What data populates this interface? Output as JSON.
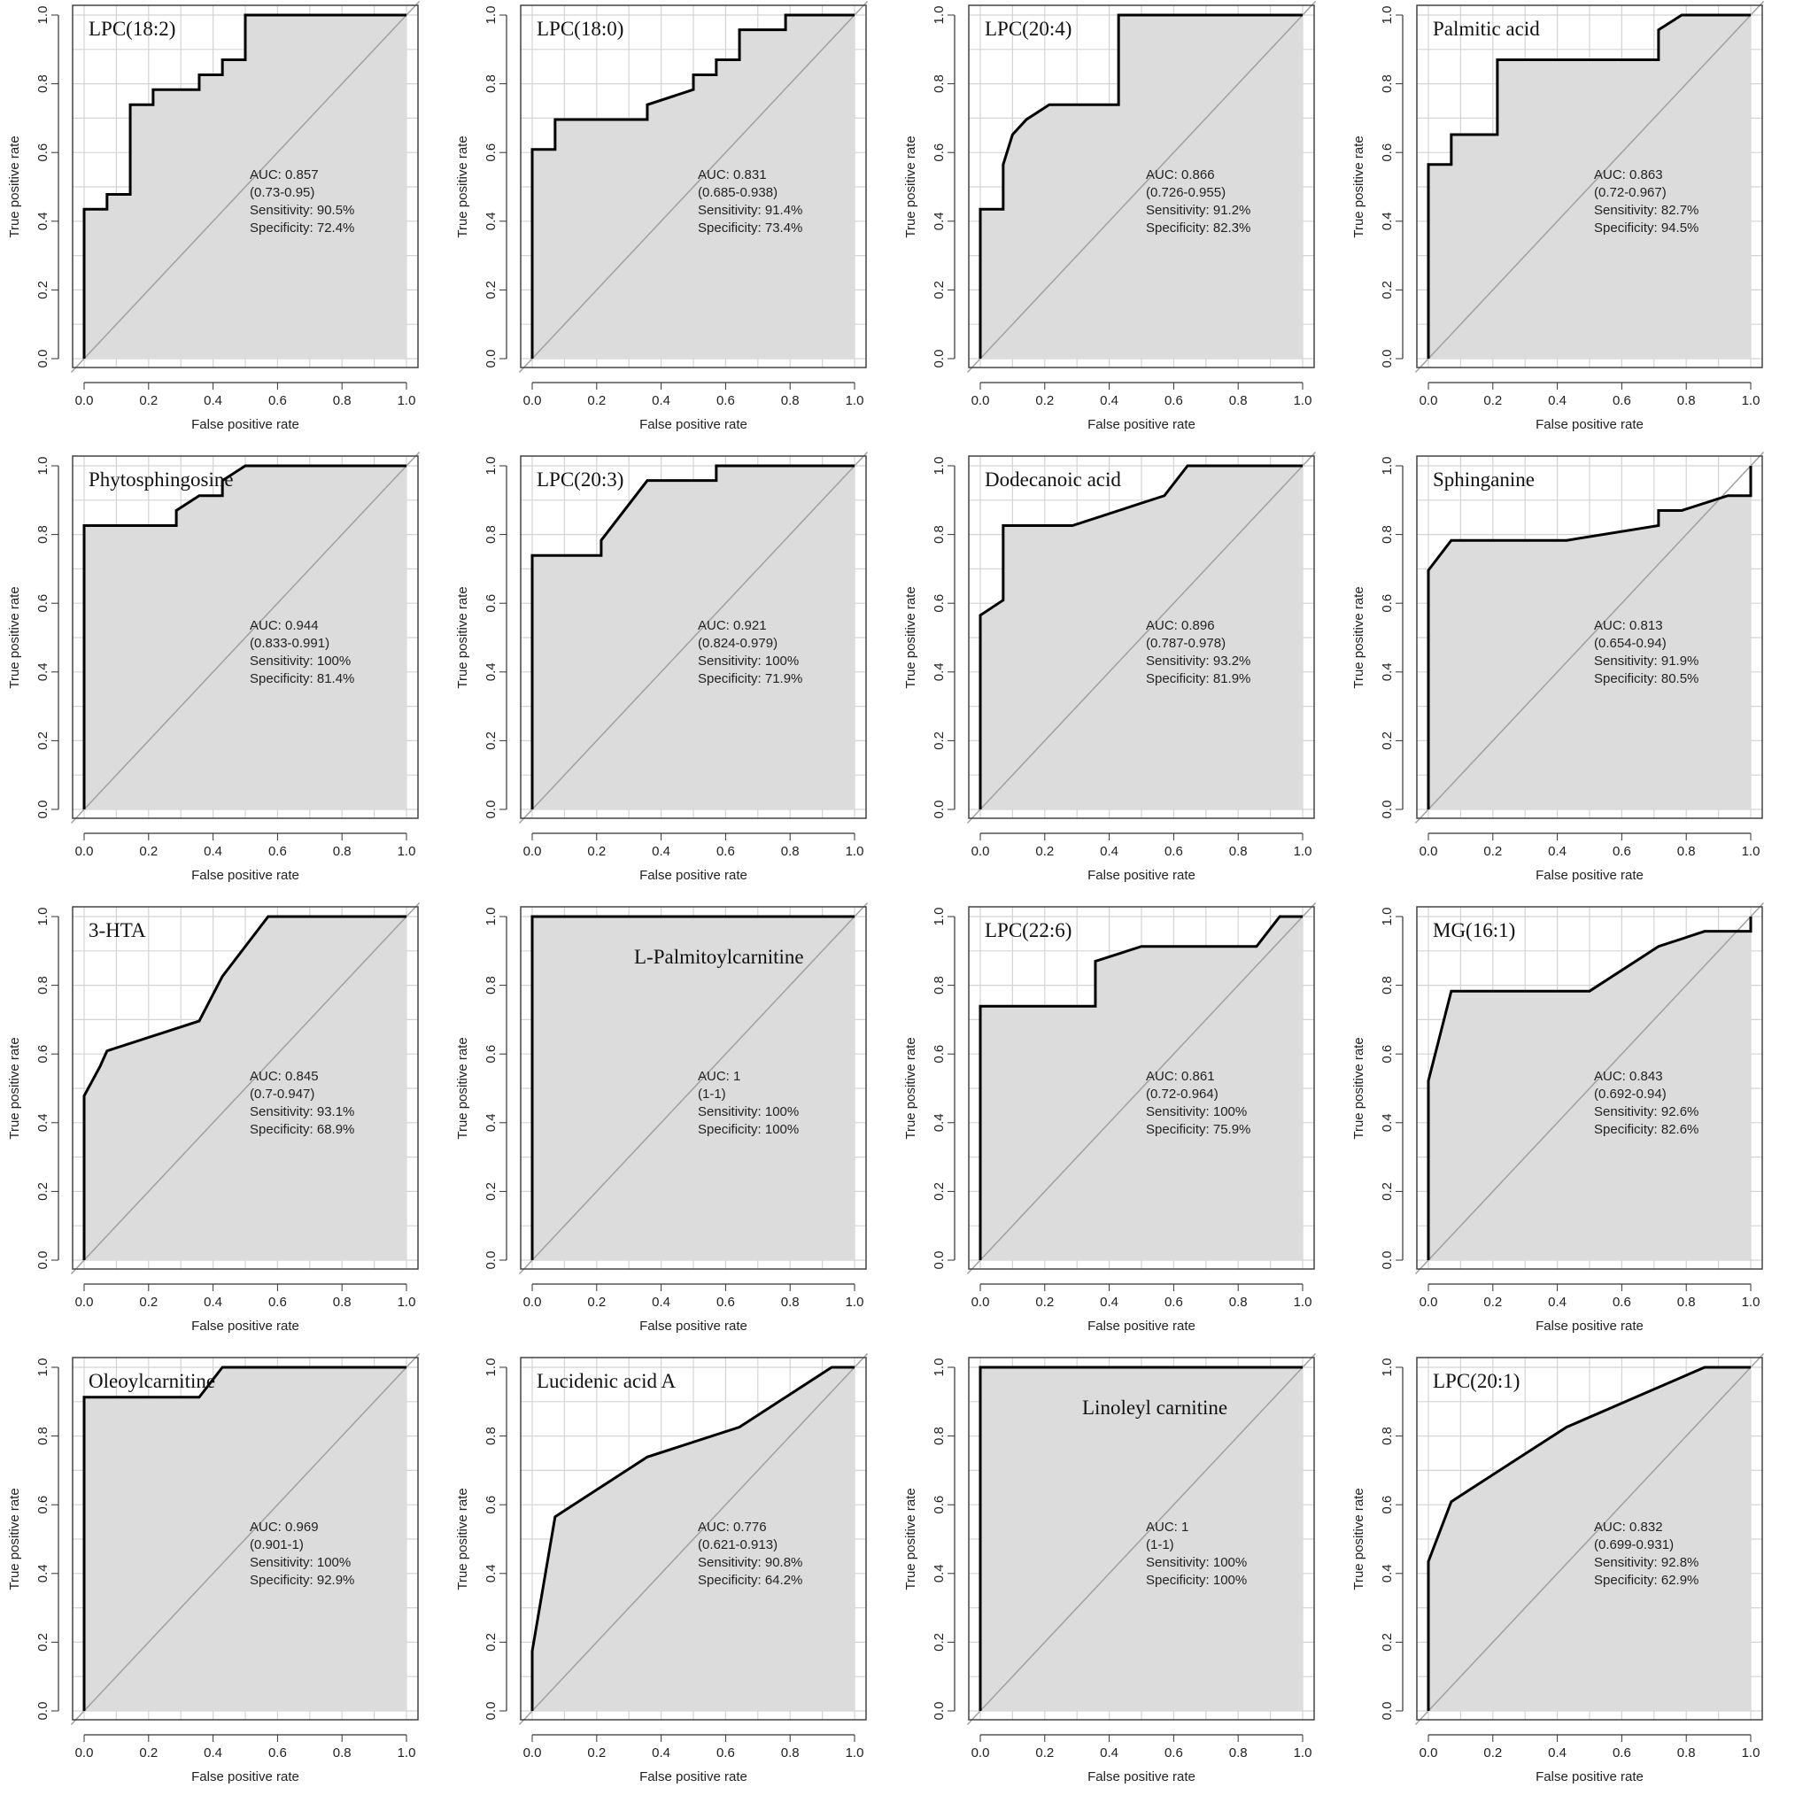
{
  "common": {
    "xlabel": "False positive rate",
    "ylabel": "True positive rate",
    "xticks": [
      "0.0",
      "0.2",
      "0.4",
      "0.6",
      "0.8",
      "1.0"
    ],
    "yticks": [
      "0.0",
      "0.2",
      "0.4",
      "0.6",
      "0.8",
      "1.0"
    ],
    "xlim": [
      0,
      1
    ],
    "ylim": [
      0,
      1
    ],
    "grid": true,
    "fill_color": "#dcdcdc",
    "curve_color": "#000000",
    "diagonal_color": "#a0a0a0",
    "grid_color": "#d4d4d4"
  },
  "chart_data": [
    {
      "type": "line",
      "title": "LPC(18:2)",
      "auc": "AUC: 0.857",
      "ci": "(0.73-0.95)",
      "sensitivity": "Sensitivity: 90.5%",
      "specificity": "Specificity: 72.4%",
      "x": [
        0,
        0,
        0.071,
        0.071,
        0.143,
        0.143,
        0.214,
        0.214,
        0.357,
        0.357,
        0.429,
        0.429,
        0.5,
        0.5,
        1
      ],
      "y": [
        0,
        0.435,
        0.435,
        0.478,
        0.478,
        0.739,
        0.739,
        0.783,
        0.783,
        0.826,
        0.826,
        0.87,
        0.87,
        1,
        1
      ]
    },
    {
      "type": "line",
      "title": "LPC(18:0)",
      "auc": "AUC: 0.831",
      "ci": "(0.685-0.938)",
      "sensitivity": "Sensitivity: 91.4%",
      "specificity": "Specificity: 73.4%",
      "x": [
        0,
        0,
        0.071,
        0.071,
        0.357,
        0.357,
        0.5,
        0.5,
        0.571,
        0.571,
        0.643,
        0.643,
        0.786,
        0.786,
        1
      ],
      "y": [
        0,
        0.609,
        0.609,
        0.696,
        0.696,
        0.739,
        0.783,
        0.826,
        0.826,
        0.87,
        0.87,
        0.957,
        0.957,
        1,
        1
      ]
    },
    {
      "type": "line",
      "title": "LPC(20:4)",
      "auc": "AUC: 0.866",
      "ci": "(0.726-0.955)",
      "sensitivity": "Sensitivity: 91.2%",
      "specificity": "Specificity: 82.3%",
      "x": [
        0,
        0,
        0.071,
        0.071,
        0.1,
        0.143,
        0.214,
        0.429,
        0.429,
        1
      ],
      "y": [
        0,
        0.435,
        0.435,
        0.565,
        0.652,
        0.696,
        0.739,
        0.739,
        1,
        1
      ]
    },
    {
      "type": "line",
      "title": "Palmitic acid",
      "auc": "AUC: 0.863",
      "ci": "(0.72-0.967)",
      "sensitivity": "Sensitivity: 82.7%",
      "specificity": "Specificity: 94.5%",
      "x": [
        0,
        0,
        0.071,
        0.071,
        0.214,
        0.214,
        0.714,
        0.714,
        0.786,
        0.786,
        1
      ],
      "y": [
        0,
        0.565,
        0.565,
        0.652,
        0.652,
        0.87,
        0.87,
        0.957,
        1,
        1,
        1
      ]
    },
    {
      "type": "line",
      "title": "Phytosphingosine",
      "auc": "AUC: 0.944",
      "ci": "(0.833-0.991)",
      "sensitivity": "Sensitivity: 100%",
      "specificity": "Specificity: 81.4%",
      "x": [
        0,
        0,
        0.286,
        0.286,
        0.357,
        0.429,
        0.429,
        0.5,
        1
      ],
      "y": [
        0,
        0.826,
        0.826,
        0.87,
        0.913,
        0.913,
        0.957,
        1,
        1
      ]
    },
    {
      "type": "line",
      "title": "LPC(20:3)",
      "auc": "AUC: 0.921",
      "ci": "(0.824-0.979)",
      "sensitivity": "Sensitivity: 100%",
      "specificity": "Specificity: 71.9%",
      "x": [
        0,
        0,
        0.214,
        0.214,
        0.357,
        0.571,
        0.571,
        1
      ],
      "y": [
        0,
        0.739,
        0.739,
        0.783,
        0.957,
        0.957,
        1,
        1
      ]
    },
    {
      "type": "line",
      "title": "Dodecanoic acid",
      "auc": "AUC: 0.896",
      "ci": "(0.787-0.978)",
      "sensitivity": "Sensitivity: 93.2%",
      "specificity": "Specificity: 81.9%",
      "x": [
        0,
        0,
        0.071,
        0.071,
        0.286,
        0.571,
        0.643,
        1
      ],
      "y": [
        0,
        0.565,
        0.609,
        0.826,
        0.826,
        0.913,
        1,
        1
      ]
    },
    {
      "type": "line",
      "title": "Sphinganine",
      "auc": "AUC: 0.813",
      "ci": "(0.654-0.94)",
      "sensitivity": "Sensitivity: 91.9%",
      "specificity": "Specificity: 80.5%",
      "x": [
        0,
        0,
        0.071,
        0.429,
        0.714,
        0.714,
        0.786,
        0.929,
        1,
        1
      ],
      "y": [
        0,
        0.696,
        0.783,
        0.783,
        0.826,
        0.87,
        0.87,
        0.913,
        0.913,
        1
      ]
    },
    {
      "type": "line",
      "title": "3-HTA",
      "auc": "AUC: 0.845",
      "ci": "(0.7-0.947)",
      "sensitivity": "Sensitivity: 93.1%",
      "specificity": "Specificity: 68.9%",
      "x": [
        0,
        0,
        0.05,
        0.071,
        0.357,
        0.429,
        0.571,
        1
      ],
      "y": [
        0,
        0.478,
        0.565,
        0.609,
        0.696,
        0.826,
        1,
        1
      ]
    },
    {
      "type": "line",
      "title": "L-Palmitoylcarnitine",
      "auc": "AUC: 1",
      "ci": "(1-1)",
      "sensitivity": "Sensitivity: 100%",
      "specificity": "Specificity: 100%",
      "x": [
        0,
        0,
        1
      ],
      "y": [
        0,
        1,
        1
      ]
    },
    {
      "type": "line",
      "title": "LPC(22:6)",
      "auc": "AUC: 0.861",
      "ci": "(0.72-0.964)",
      "sensitivity": "Sensitivity: 100%",
      "specificity": "Specificity: 75.9%",
      "x": [
        0,
        0,
        0.357,
        0.357,
        0.5,
        0.857,
        0.929,
        1,
        1
      ],
      "y": [
        0,
        0.739,
        0.739,
        0.87,
        0.913,
        0.913,
        1,
        1,
        1
      ]
    },
    {
      "type": "line",
      "title": "MG(16:1)",
      "auc": "AUC: 0.843",
      "ci": "(0.692-0.94)",
      "sensitivity": "Sensitivity: 92.6%",
      "specificity": "Specificity: 82.6%",
      "x": [
        0,
        0,
        0.071,
        0.5,
        0.714,
        0.857,
        1,
        1
      ],
      "y": [
        0,
        0.522,
        0.783,
        0.783,
        0.913,
        0.957,
        0.957,
        1
      ]
    },
    {
      "type": "line",
      "title": "Oleoylcarnitine",
      "auc": "AUC: 0.969",
      "ci": "(0.901-1)",
      "sensitivity": "Sensitivity: 100%",
      "specificity": "Specificity: 92.9%",
      "x": [
        0,
        0,
        0.357,
        0.429,
        1
      ],
      "y": [
        0,
        0.913,
        0.913,
        1,
        1
      ]
    },
    {
      "type": "line",
      "title": "Lucidenic acid A",
      "auc": "AUC: 0.776",
      "ci": "(0.621-0.913)",
      "sensitivity": "Sensitivity: 90.8%",
      "specificity": "Specificity: 64.2%",
      "x": [
        0,
        0,
        0.071,
        0.143,
        0.357,
        0.643,
        0.786,
        0.929,
        1
      ],
      "y": [
        0,
        0.174,
        0.565,
        0.609,
        0.739,
        0.826,
        0.913,
        1,
        1
      ]
    },
    {
      "type": "line",
      "title": "Linoleyl carnitine",
      "auc": "AUC: 1",
      "ci": "(1-1)",
      "sensitivity": "Sensitivity: 100%",
      "specificity": "Specificity: 100%",
      "x": [
        0,
        0,
        1
      ],
      "y": [
        0,
        1,
        1
      ]
    },
    {
      "type": "line",
      "title": "LPC(20:1)",
      "auc": "AUC: 0.832",
      "ci": "(0.699-0.931)",
      "sensitivity": "Sensitivity: 92.8%",
      "specificity": "Specificity: 62.9%",
      "x": [
        0,
        0,
        0.071,
        0.214,
        0.429,
        0.643,
        0.857,
        1
      ],
      "y": [
        0,
        0.435,
        0.609,
        0.696,
        0.826,
        0.913,
        1,
        1
      ]
    }
  ]
}
